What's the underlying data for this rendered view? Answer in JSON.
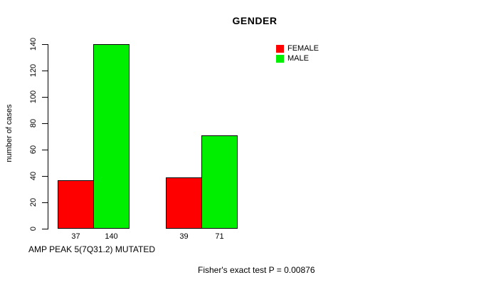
{
  "page": {
    "background": "#FFFFFF"
  },
  "chart_data": {
    "type": "bar",
    "title": "GENDER",
    "xlabel": "AMP PEAK 5(7Q31.2) MUTATED",
    "ylabel": "number of cases",
    "annotation": "Fisher's exact test P = 0.00876",
    "ylim": [
      0,
      140
    ],
    "yticks": [
      0,
      20,
      40,
      60,
      80,
      100,
      120,
      140
    ],
    "grid": false,
    "legend_position": "top-right",
    "series": [
      {
        "name": "FEMALE",
        "color": "#FF0000",
        "values": [
          37,
          39
        ]
      },
      {
        "name": "MALE",
        "color": "#00EE00",
        "values": [
          140,
          71
        ]
      }
    ],
    "x_tick_labels": [
      [
        "37",
        "140"
      ],
      [
        "39",
        "71"
      ]
    ]
  }
}
